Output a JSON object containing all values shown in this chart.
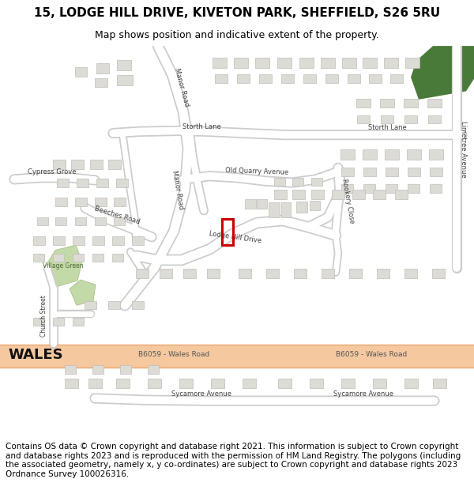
{
  "title_line1": "15, LODGE HILL DRIVE, KIVETON PARK, SHEFFIELD, S26 5RU",
  "title_line2": "Map shows position and indicative extent of the property.",
  "title_fontsize": 11,
  "subtitle_fontsize": 9,
  "footer_text": "Contains OS data © Crown copyright and database right 2021. This information is subject to Crown copyright and database rights 2023 and is reproduced with the permission of HM Land Registry. The polygons (including the associated geometry, namely x, y co-ordinates) are subject to Crown copyright and database rights 2023 Ordnance Survey 100026316.",
  "footer_fontsize": 7.5,
  "bg_color": "#ffffff",
  "map_bg": "#f0eeea",
  "road_color": "#ffffff",
  "road_outline": "#cccccc",
  "major_road_fill": "#f5c8a0",
  "major_road_outline": "#e8a068",
  "building_color": "#dddbd5",
  "building_outline": "#c0bdb6",
  "green_color": "#c4d9a8",
  "dark_green": "#4a7a3a",
  "highlight_color": "#cc0000"
}
